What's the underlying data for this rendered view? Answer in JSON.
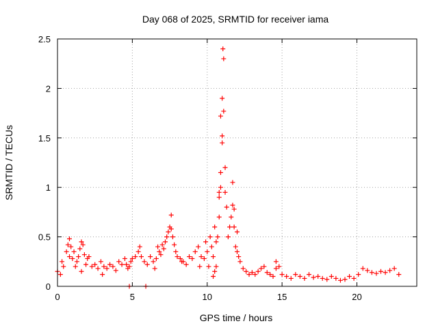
{
  "chart_data": {
    "type": "scatter",
    "title": "Day 068 of 2025, SRMTID for receiver iama",
    "xlabel": "GPS time / hours",
    "ylabel": "SRMTID / TECUs",
    "xlim": [
      0,
      24
    ],
    "ylim": [
      0,
      2.5
    ],
    "grid": true,
    "marker": "+",
    "series_color": "#ff0000",
    "x_ticks": [
      0,
      5,
      10,
      15,
      20
    ],
    "y_ticks": [
      0,
      0.5,
      1,
      1.5,
      2,
      2.5
    ],
    "x_tick_labels": [
      "0",
      "5",
      "10",
      "15",
      "20"
    ],
    "y_tick_labels": [
      "0",
      "0.5",
      "1",
      "1.5",
      "2",
      "2.5"
    ],
    "series": [
      {
        "name": "SRMTID",
        "x": [
          0.0,
          0.2,
          0.4,
          0.6,
          0.7,
          0.8,
          0.9,
          1.0,
          1.1,
          1.2,
          1.3,
          1.4,
          1.5,
          1.6,
          1.7,
          1.8,
          1.9,
          2.0,
          2.1,
          2.3,
          2.5,
          2.7,
          2.9,
          3.1,
          3.3,
          3.5,
          3.7,
          3.9,
          4.1,
          4.3,
          4.5,
          4.6,
          4.7,
          4.8,
          4.9,
          5.0,
          5.2,
          5.4,
          5.5,
          5.6,
          5.8,
          6.0,
          6.2,
          6.4,
          6.6,
          6.7,
          6.8,
          6.9,
          7.0,
          7.1,
          7.2,
          7.3,
          7.4,
          7.5,
          7.6,
          7.7,
          7.8,
          7.9,
          8.0,
          8.2,
          8.4,
          8.6,
          8.8,
          9.0,
          9.2,
          9.4,
          9.6,
          9.8,
          9.9,
          10.0,
          10.1,
          10.2,
          10.3,
          10.4,
          10.5,
          10.6,
          10.7,
          10.8,
          10.9,
          11.0,
          11.05,
          11.1,
          11.2,
          11.3,
          11.4,
          11.5,
          11.6,
          11.7,
          11.8,
          11.9,
          12.0,
          12.1,
          12.2,
          12.4,
          12.6,
          12.8,
          13.0,
          13.2,
          13.4,
          13.6,
          13.8,
          14.0,
          14.2,
          14.4,
          14.6,
          14.8,
          15.0,
          15.3,
          15.6,
          15.9,
          16.2,
          16.5,
          16.8,
          17.1,
          17.4,
          17.7,
          18.0,
          18.3,
          18.6,
          18.9,
          19.2,
          19.5,
          19.8,
          20.1,
          20.4,
          20.7,
          21.0,
          21.3,
          21.6,
          21.9,
          22.2,
          22.5,
          22.8,
          4.8,
          5.9,
          0.3,
          0.8,
          1.6,
          7.6,
          9.5,
          10.9,
          11.0,
          11.0,
          11.1,
          10.8,
          10.8,
          10.9,
          11.2,
          11.7,
          11.8,
          12.0,
          10.4,
          10.5,
          10.6,
          14.6,
          3.0,
          6.5,
          8.3
        ],
        "y": [
          0.15,
          0.12,
          0.2,
          0.35,
          0.42,
          0.3,
          0.4,
          0.28,
          0.35,
          0.2,
          0.25,
          0.3,
          0.38,
          0.45,
          0.42,
          0.32,
          0.22,
          0.28,
          0.3,
          0.2,
          0.22,
          0.18,
          0.25,
          0.2,
          0.18,
          0.22,
          0.2,
          0.16,
          0.25,
          0.22,
          0.28,
          0.22,
          0.18,
          0.2,
          0.25,
          0.28,
          0.3,
          0.35,
          0.4,
          0.3,
          0.25,
          0.22,
          0.3,
          0.25,
          0.28,
          0.4,
          0.35,
          0.32,
          0.42,
          0.38,
          0.45,
          0.5,
          0.55,
          0.6,
          0.58,
          0.5,
          0.42,
          0.35,
          0.3,
          0.28,
          0.25,
          0.22,
          0.3,
          0.28,
          0.35,
          0.4,
          0.3,
          0.28,
          0.45,
          0.35,
          0.2,
          0.5,
          0.4,
          0.3,
          0.6,
          0.45,
          0.5,
          0.7,
          1.0,
          1.9,
          2.4,
          2.3,
          1.2,
          0.8,
          0.5,
          0.6,
          0.7,
          1.05,
          0.6,
          0.4,
          0.35,
          0.3,
          0.25,
          0.18,
          0.15,
          0.12,
          0.14,
          0.12,
          0.15,
          0.18,
          0.2,
          0.14,
          0.12,
          0.1,
          0.18,
          0.2,
          0.12,
          0.1,
          0.08,
          0.12,
          0.1,
          0.08,
          0.12,
          0.09,
          0.1,
          0.08,
          0.07,
          0.1,
          0.08,
          0.06,
          0.07,
          0.1,
          0.08,
          0.12,
          0.18,
          0.16,
          0.14,
          0.13,
          0.15,
          0.14,
          0.16,
          0.18,
          0.12,
          0.0,
          0.0,
          0.25,
          0.48,
          0.15,
          0.72,
          0.2,
          1.72,
          1.52,
          1.45,
          1.77,
          0.95,
          0.9,
          1.15,
          0.95,
          0.82,
          0.78,
          0.55,
          0.1,
          0.15,
          0.2,
          0.25,
          0.12,
          0.18,
          0.25
        ]
      }
    ]
  }
}
